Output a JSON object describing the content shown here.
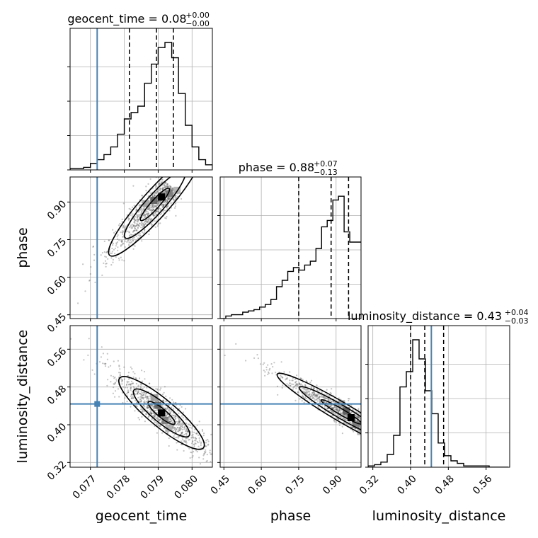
{
  "chart_data": {
    "type": "corner",
    "parameters": [
      "geocent_time",
      "phase",
      "luminosity_distance"
    ],
    "truths": {
      "geocent_time": 0.0772,
      "phase": null,
      "luminosity_distance": 0.444
    },
    "colors": {
      "truth": "#4682b4",
      "hist": "#000000",
      "grid": "#b0b0b0",
      "scatter": "#555555"
    },
    "titles": [
      {
        "param": "geocent_time",
        "text": "geocent_time = 0.08",
        "plus": "+0.00",
        "minus": "−0.00"
      },
      {
        "param": "phase",
        "text": "phase = 0.88",
        "plus": "+0.07",
        "minus": "−0.13"
      },
      {
        "param": "luminosity_distance",
        "text": "luminosity_distance = 0.43",
        "plus": "+0.04",
        "minus": "−0.03"
      }
    ],
    "axes": {
      "geocent_time": {
        "label": "geocent_time",
        "range": [
          0.0764,
          0.0806
        ],
        "ticks": [
          0.077,
          0.078,
          0.079,
          0.08
        ],
        "tick_labels": [
          "0.077",
          "0.078",
          "0.079",
          "0.080"
        ],
        "quantiles": [
          0.07815,
          0.07895,
          0.07945
        ]
      },
      "phase": {
        "label": "phase",
        "range": [
          0.435,
          1.0
        ],
        "ticks": [
          0.45,
          0.6,
          0.75,
          0.9
        ],
        "tick_labels": [
          "0.45",
          "0.60",
          "0.75",
          "0.90"
        ],
        "quantiles": [
          0.75,
          0.88,
          0.95
        ]
      },
      "luminosity_distance": {
        "label": "luminosity_distance",
        "range": [
          0.31,
          0.61
        ],
        "ticks": [
          0.32,
          0.4,
          0.48,
          0.56
        ],
        "tick_labels": [
          "0.32",
          "0.40",
          "0.48",
          "0.56"
        ],
        "quantiles": [
          0.4,
          0.43,
          0.47
        ]
      }
    },
    "histograms": {
      "geocent_time": {
        "edges_start": 0.0764,
        "bin_width": 0.0002,
        "counts": [
          0.01,
          0.01,
          0.02,
          0.05,
          0.08,
          0.12,
          0.18,
          0.28,
          0.4,
          0.45,
          0.5,
          0.68,
          0.83,
          0.96,
          1.0,
          0.88,
          0.6,
          0.35,
          0.18,
          0.08,
          0.04,
          0.01
        ]
      },
      "phase": {
        "edges_start": 0.435,
        "bin_width": 0.0226,
        "counts": [
          0.0,
          0.02,
          0.03,
          0.03,
          0.05,
          0.06,
          0.07,
          0.09,
          0.11,
          0.15,
          0.25,
          0.3,
          0.37,
          0.4,
          0.38,
          0.42,
          0.45,
          0.55,
          0.72,
          0.77,
          0.93,
          0.96,
          0.68,
          0.6,
          0.6
        ]
      },
      "luminosity_distance": {
        "edges_start": 0.31,
        "bin_width": 0.0135,
        "counts": [
          0.01,
          0.02,
          0.04,
          0.1,
          0.25,
          0.63,
          0.75,
          1.0,
          0.85,
          0.6,
          0.42,
          0.19,
          0.09,
          0.05,
          0.03,
          0.01,
          0.01,
          0.01,
          0.01,
          0.0,
          0.0,
          0.0
        ]
      }
    },
    "pairs": [
      {
        "x": "geocent_time",
        "y": "phase",
        "correlation": "positive",
        "center": [
          0.0791,
          0.92
        ]
      },
      {
        "x": "geocent_time",
        "y": "luminosity_distance",
        "correlation": "negative",
        "center": [
          0.0791,
          0.425
        ]
      },
      {
        "x": "phase",
        "y": "luminosity_distance",
        "correlation": "negative",
        "center": [
          0.96,
          0.415
        ]
      }
    ],
    "grid": true
  }
}
